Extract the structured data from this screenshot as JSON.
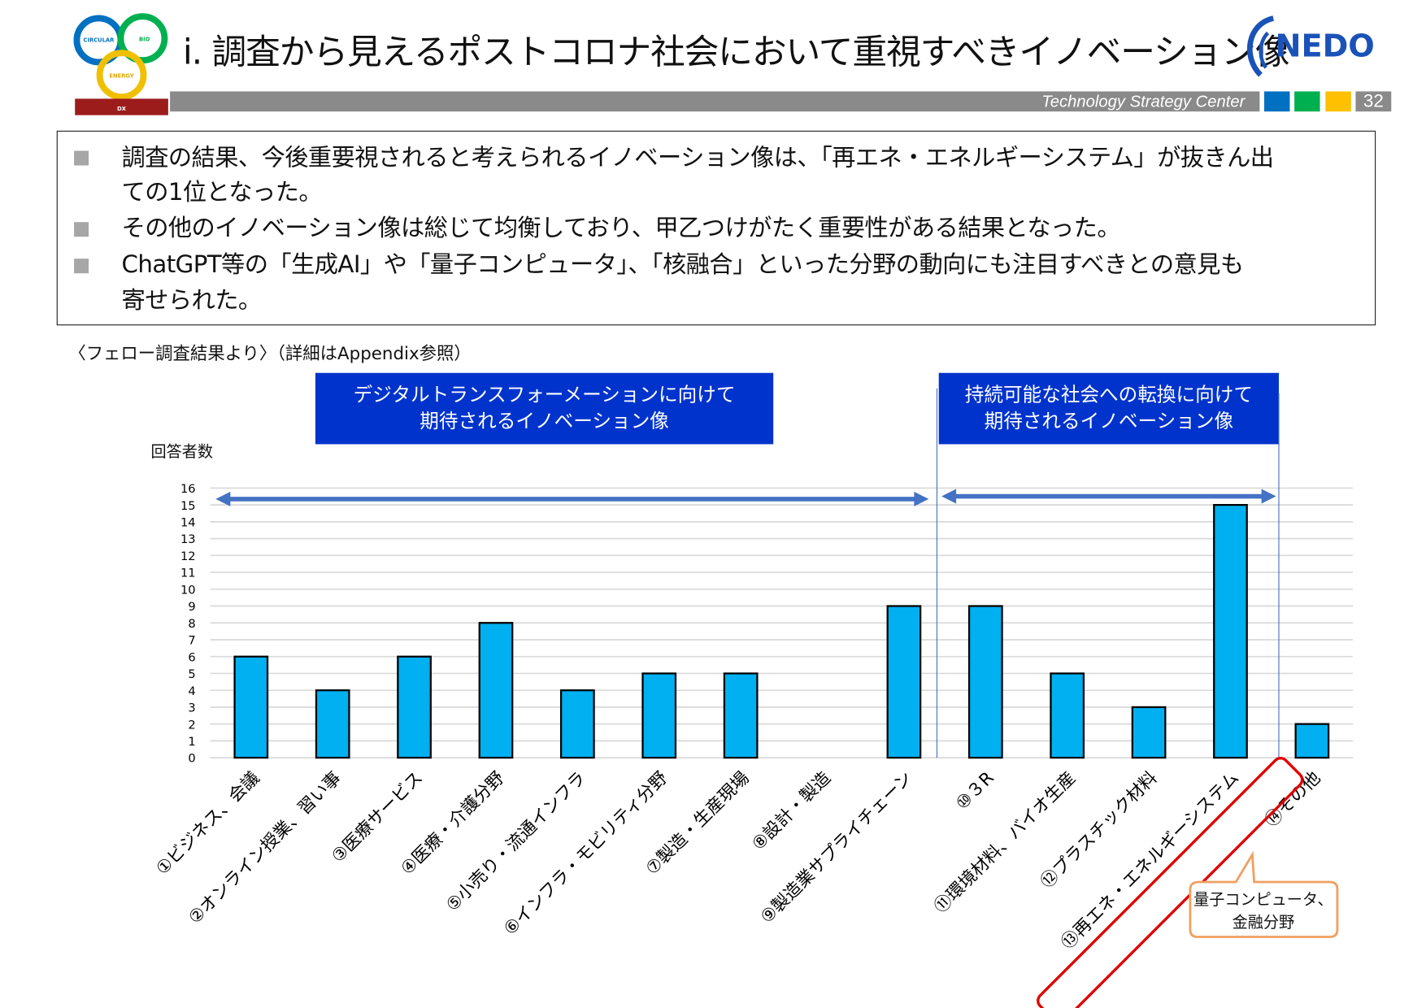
{
  "header": {
    "title": "i. 調査から見えるポストコロナ社会において重視すべきイノベーション像",
    "left_logo_text": [
      "CIRCULAR",
      "BIO",
      "ENERGY",
      "DX"
    ],
    "right_logo_text": "NEDO",
    "center_label": "Technology Strategy Center",
    "page_number": "32",
    "square_colors": [
      "#0070c0",
      "#00b050",
      "#ffc000"
    ]
  },
  "summary": {
    "bullets": [
      [
        "調査の結果、今後重要視されると考えられるイノベーション像は、「再エネ・エネルギーシステム」が抜きん出",
        "ての1位となった。"
      ],
      [
        "その他のイノベーション像は総じて均衡しており、甲乙つけがたく重要性がある結果となった。"
      ],
      [
        "ChatGPT等の「生成AI」や「量子コンピュータ」、「核融合」といった分野の動向にも注目すべきとの意見も",
        "寄せられた。"
      ]
    ]
  },
  "caption": "〈フェロー調査結果より〉（詳細はAppendix参照）",
  "groups": [
    {
      "line1": "デジタルトランスフォーメーションに向けて",
      "line2": "期待されるイノベーション像"
    },
    {
      "line1": "持続可能な社会への転換に向けて",
      "line2": "期待されるイノベーション像"
    }
  ],
  "chart_data": {
    "type": "bar",
    "ylabel": "回答者数",
    "ylim": [
      0,
      16
    ],
    "yticks": [
      0,
      1,
      2,
      3,
      4,
      5,
      6,
      7,
      8,
      9,
      10,
      11,
      12,
      13,
      14,
      15,
      16
    ],
    "grid": true,
    "categories": [
      "①ビジネス、会議",
      "②オンライン授業、習い事",
      "③医療サービス",
      "④医療・介護分野",
      "⑤小売り・流通インフラ",
      "⑥インフラ・モビリティ分野",
      "⑦製造・生産現場",
      "⑧設計・製造",
      "⑨製造業サプライチェーン",
      "⑩３R",
      "⑪環境材料、バイオ生産",
      "⑫プラスチック材料",
      "⑬再エネ・エネルギーシステム",
      "⑭その他"
    ],
    "values": [
      6,
      4,
      6,
      8,
      4,
      5,
      5,
      0,
      9,
      9,
      5,
      3,
      15,
      2
    ],
    "bar_color": "#00b0f0",
    "highlight_category": "⑬再エネ・エネルギーシステム",
    "annotation": {
      "line1": "量子コンピュータ、",
      "line2": "金融分野"
    }
  },
  "colors": {
    "header_box": "#0033cc",
    "arrow": "#4472c4",
    "highlight": "#e00000",
    "callout_border": "#f0a060"
  }
}
